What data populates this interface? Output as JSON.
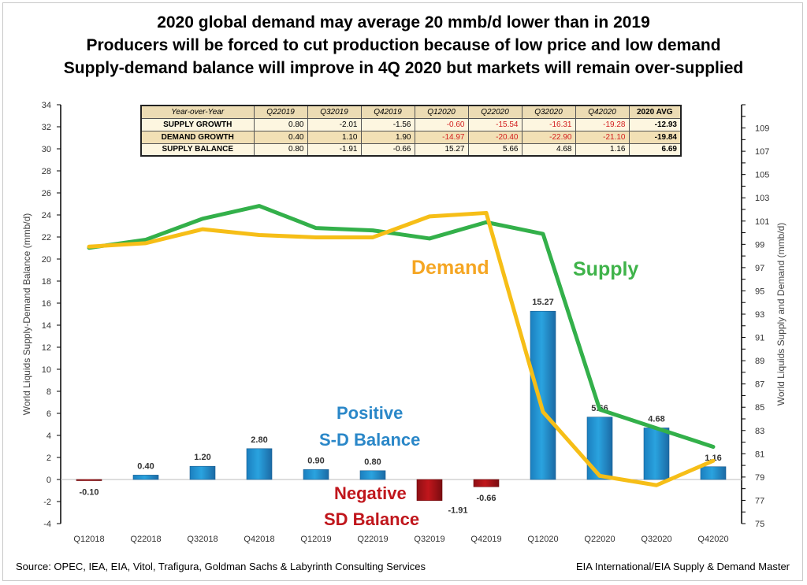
{
  "titles": {
    "line1": "2020 global demand may average 20 mmb/d lower than in 2019",
    "line2": "Producers will be forced to cut production because of low price and low demand",
    "line3": "Supply-demand balance will improve in 4Q 2020 but markets will remain over-supplied"
  },
  "table": {
    "header": [
      "Year-over-Year",
      "Q22019",
      "Q32019",
      "Q42019",
      "Q12020",
      "Q22020",
      "Q32020",
      "Q42020",
      "2020 AVG"
    ],
    "rows": [
      {
        "label": "SUPPLY GROWTH",
        "values": [
          "0.80",
          "-2.01",
          "-1.56",
          "-0.60",
          "-15.54",
          "-16.31",
          "-19.28",
          "-12.93"
        ]
      },
      {
        "label": "DEMAND GROWTH",
        "values": [
          "0.40",
          "1.10",
          "1.90",
          "-14.97",
          "-20.40",
          "-22.90",
          "-21.10",
          "-19.84"
        ]
      },
      {
        "label": "SUPPLY BALANCE",
        "values": [
          "0.80",
          "-1.91",
          "-0.66",
          "15.27",
          "5.66",
          "4.68",
          "1.16",
          "6.69"
        ]
      }
    ],
    "negative_color": "#d21e1e"
  },
  "annotations": {
    "demand": "Demand",
    "supply": "Supply",
    "positive_1": "Positive",
    "positive_2": "S-D Balance",
    "negative_1": "Negative",
    "negative_2": "SD Balance"
  },
  "footer": {
    "source": "Source: OPEC,  IEA, EIA, Vitol, Trafigura, Goldman Sachs  & Labyrinth Consulting Services",
    "credit": "EIA International/EIA Supply & Demand Master"
  },
  "colors": {
    "bar_positive": "#2aa3df",
    "bar_negative": "#c0161c",
    "supply_line": "#33b04a",
    "demand_line": "#f6be17",
    "positive_text": "#2a87c8",
    "negative_text": "#c0161c",
    "demand_text": "#f5a623",
    "supply_text": "#3fb34a"
  },
  "chart_data": {
    "type": "bar+line",
    "categories": [
      "Q12018",
      "Q22018",
      "Q32018",
      "Q42018",
      "Q12019",
      "Q22019",
      "Q32019",
      "Q42019",
      "Q12020",
      "Q22020",
      "Q32020",
      "Q42020"
    ],
    "left_axis": {
      "label": "World Liquids Supply-Demand Balance (mmb/d)",
      "min": -4,
      "max": 34,
      "step": 2
    },
    "right_axis": {
      "label": "World Liquids Supply and Demand (mmb/d)",
      "min": 75,
      "max": 111,
      "step": 2
    },
    "bar_series": {
      "name": "Supply-Demand Balance",
      "values": [
        -0.1,
        0.4,
        1.2,
        2.8,
        0.9,
        0.8,
        -1.91,
        -0.66,
        15.27,
        5.66,
        4.68,
        1.16
      ],
      "labels": [
        "-0.10",
        "0.40",
        "1.20",
        "2.80",
        "0.90",
        "0.80",
        "-1.91",
        "-0.66",
        "15.27",
        "5.66",
        "4.68",
        "1.16"
      ]
    },
    "line_series": [
      {
        "name": "Supply",
        "values": [
          98.7,
          99.4,
          101.2,
          102.3,
          100.4,
          100.2,
          99.5,
          100.9,
          99.9,
          84.8,
          83.2,
          81.6
        ]
      },
      {
        "name": "Demand",
        "values": [
          98.8,
          99.1,
          100.3,
          99.8,
          99.6,
          99.6,
          101.4,
          101.7,
          84.6,
          79.1,
          78.3,
          80.4
        ]
      }
    ]
  }
}
